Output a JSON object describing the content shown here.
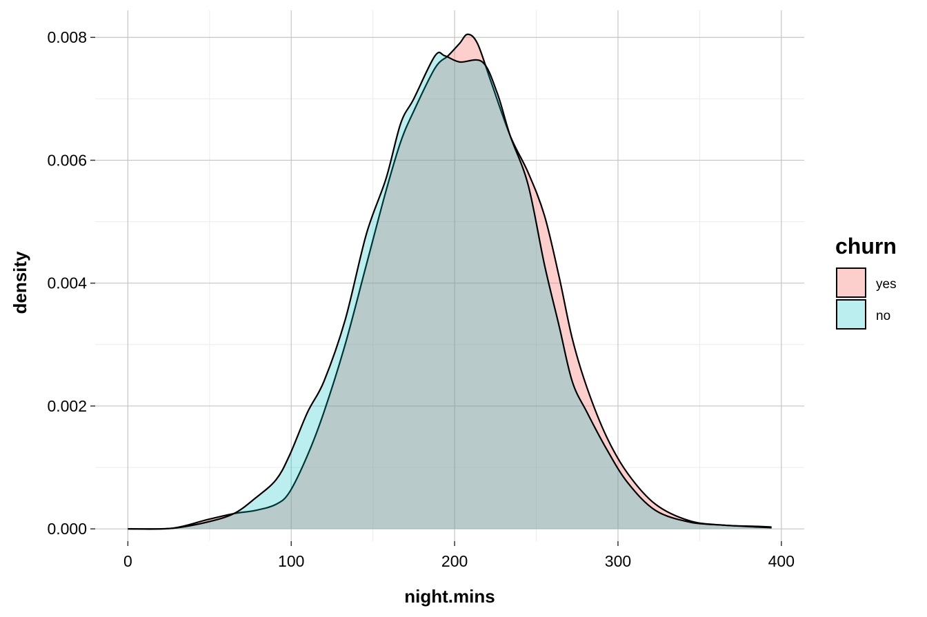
{
  "chart_data": {
    "type": "area",
    "subtype": "density",
    "title": "",
    "xlabel": "night.mins",
    "ylabel": "density",
    "xlim": [
      -20,
      414
    ],
    "ylim": [
      -0.0002,
      0.00844
    ],
    "x_ticks": [
      0,
      100,
      200,
      300,
      400
    ],
    "x_tick_labels": [
      "0",
      "100",
      "200",
      "300",
      "400"
    ],
    "y_ticks": [
      0,
      0.002,
      0.004,
      0.006,
      0.008
    ],
    "y_tick_labels": [
      "0.000",
      "0.002",
      "0.004",
      "0.006",
      "0.008"
    ],
    "grid": true,
    "legend": {
      "title": "churn",
      "position": "right",
      "entries": [
        "yes",
        "no"
      ]
    },
    "series": [
      {
        "name": "yes",
        "color": "#F8766D",
        "x": [
          0,
          27,
          48.5,
          65,
          78,
          90.7,
          99,
          110,
          120,
          133,
          146,
          158,
          167,
          175,
          188,
          196,
          203,
          208,
          214,
          222,
          234,
          245,
          255,
          264,
          272,
          281,
          293,
          306,
          323,
          344,
          365,
          386,
          394
        ],
        "y": [
          0,
          1e-05,
          0.00015,
          0.00025,
          0.0003,
          0.0004,
          0.0006,
          0.0012,
          0.0019,
          0.003,
          0.0043,
          0.0055,
          0.0063,
          0.0068,
          0.0075,
          0.0077,
          0.0079,
          0.00805,
          0.0079,
          0.0073,
          0.0064,
          0.0058,
          0.0051,
          0.0041,
          0.0031,
          0.0023,
          0.0015,
          0.0009,
          0.0004,
          0.00013,
          6e-05,
          4e-05,
          3e-05
        ]
      },
      {
        "name": "no",
        "color": "#00BFC4",
        "x": [
          0,
          27,
          48.5,
          65,
          78,
          90.7,
          99,
          110,
          120,
          133,
          146,
          158,
          167,
          175,
          188,
          194,
          203,
          217,
          226,
          234,
          245,
          255,
          264,
          272,
          281,
          293,
          306,
          323,
          344,
          365,
          386,
          394
        ],
        "y": [
          0,
          1e-05,
          0.00011,
          0.00025,
          0.0005,
          0.0008,
          0.0012,
          0.0019,
          0.0024,
          0.0034,
          0.0048,
          0.0057,
          0.0066,
          0.007,
          0.0077,
          0.0077,
          0.0076,
          0.0076,
          0.0071,
          0.0064,
          0.0056,
          0.0043,
          0.0033,
          0.0024,
          0.0019,
          0.0013,
          0.00075,
          0.0003,
          0.00011,
          6e-05,
          3e-05,
          2e-05
        ]
      }
    ]
  }
}
